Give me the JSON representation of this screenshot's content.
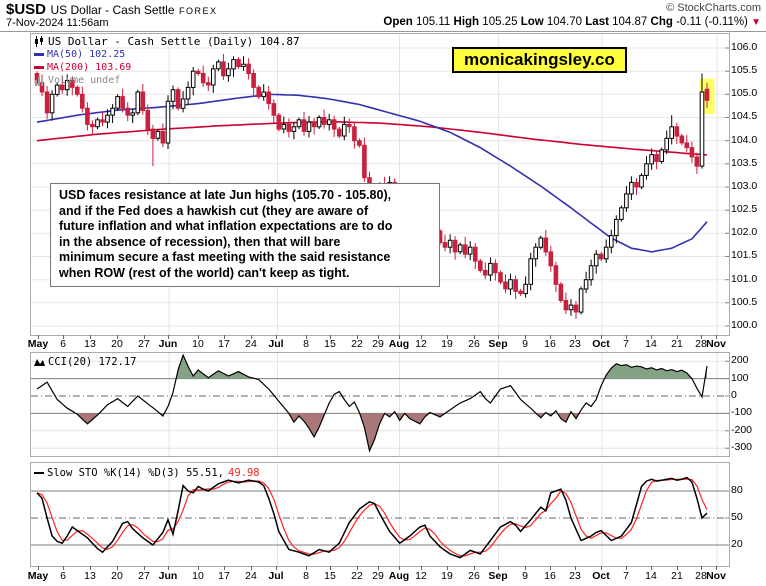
{
  "header": {
    "symbol": "$USD",
    "name": "US Dollar - Cash Settle",
    "exchange": "FOREX",
    "datetime": "7-Nov-2024 11:56am",
    "copyright": "© StockCharts.com",
    "quote": {
      "open_label": "Open",
      "open_value": "105.11",
      "high_label": "High",
      "high_value": "105.25",
      "low_label": "Low",
      "low_value": "104.70",
      "last_label": "Last",
      "last_value": "104.87",
      "chg_label": "Chg",
      "chg_value": "-0.11 (-0.11%)"
    }
  },
  "badge": {
    "text": "monicakingsley.co",
    "bg": "#ffff3d"
  },
  "legend": {
    "title": "US Dollar - Cash Settle (Daily) 104.87",
    "ma50": "MA(50) 102.25",
    "ma200": "MA(200) 103.69",
    "volume": "Volume undef",
    "ma50_color": "#3232b0",
    "ma200_color": "#cc0033"
  },
  "cci_legend": "CCI(20) 172.17",
  "sto_legend": {
    "black": "Slow STO %K(14) %D(3) 55.51,",
    "red": "49.98"
  },
  "annotation": {
    "lines": [
      "USD faces resistance at late Jun highs (105.70 - 105.80),",
      "and if the Fed does a hawkish cut (they are aware of",
      "future inflation and what inflation expectations are to do",
      "in the absence of recession), then that will bare",
      "minimum secure a fast meeting with the said resistance",
      "when ROW (rest of the world) can't keep as tight."
    ]
  },
  "chart_data": [
    {
      "type": "candlestick",
      "title": "US Dollar - Cash Settle (Daily)",
      "ylim": [
        100.0,
        106.0
      ],
      "yticks": [
        106.0,
        105.5,
        105.0,
        104.5,
        104.0,
        103.5,
        103.0,
        102.5,
        102.0,
        101.5,
        101.0,
        100.5,
        100.0
      ],
      "date_labels": [
        [
          "May",
          0.011,
          1
        ],
        [
          "6",
          0.047,
          0
        ],
        [
          "13",
          0.086,
          0
        ],
        [
          "20",
          0.125,
          0
        ],
        [
          "27",
          0.164,
          0
        ],
        [
          "Jun",
          0.198,
          1
        ],
        [
          "10",
          0.24,
          0
        ],
        [
          "17",
          0.278,
          0
        ],
        [
          "24",
          0.316,
          0
        ],
        [
          "Jul",
          0.353,
          1
        ],
        [
          "8",
          0.395,
          0
        ],
        [
          "15",
          0.43,
          0
        ],
        [
          "22",
          0.469,
          0
        ],
        [
          "29",
          0.499,
          0
        ],
        [
          "Aug",
          0.528,
          1
        ],
        [
          "12",
          0.56,
          0
        ],
        [
          "19",
          0.598,
          0
        ],
        [
          "26",
          0.636,
          0
        ],
        [
          "Sep",
          0.67,
          1
        ],
        [
          "9",
          0.709,
          0
        ],
        [
          "16",
          0.745,
          0
        ],
        [
          "23",
          0.781,
          0
        ],
        [
          "Oct",
          0.818,
          1
        ],
        [
          "7",
          0.854,
          0
        ],
        [
          "14",
          0.89,
          0
        ],
        [
          "21",
          0.927,
          0
        ],
        [
          "28",
          0.961,
          0
        ],
        [
          "Nov",
          0.983,
          1
        ]
      ],
      "closes": [
        105.25,
        105.05,
        104.6,
        105.0,
        105.2,
        105.1,
        105.3,
        105.15,
        105.0,
        104.7,
        104.35,
        104.3,
        104.45,
        104.4,
        104.55,
        104.7,
        104.95,
        104.7,
        104.55,
        104.6,
        105.05,
        104.65,
        104.25,
        104.05,
        104.2,
        103.95,
        104.85,
        105.1,
        104.7,
        104.9,
        105.15,
        105.5,
        105.45,
        105.25,
        105.2,
        105.55,
        105.7,
        105.4,
        105.55,
        105.75,
        105.6,
        105.65,
        105.45,
        105.15,
        104.95,
        105.05,
        104.8,
        104.55,
        104.25,
        104.35,
        104.2,
        104.3,
        104.45,
        104.2,
        104.4,
        104.3,
        104.5,
        104.35,
        104.45,
        104.25,
        104.1,
        104.35,
        104.3,
        104.0,
        103.9,
        103.2,
        103.0,
        102.85,
        103.05,
        102.9,
        103.1,
        102.95,
        102.8,
        102.7,
        102.85,
        102.6,
        102.35,
        102.1,
        101.95,
        102.05,
        101.8,
        101.7,
        101.85,
        101.6,
        101.75,
        101.55,
        101.7,
        101.4,
        101.2,
        101.1,
        101.35,
        101.15,
        100.95,
        100.8,
        101.0,
        100.75,
        100.7,
        100.9,
        101.45,
        101.7,
        101.9,
        101.6,
        101.3,
        100.9,
        100.55,
        100.35,
        100.45,
        100.3,
        100.8,
        101.0,
        101.3,
        101.55,
        101.45,
        101.7,
        101.95,
        102.3,
        102.55,
        102.85,
        103.1,
        103.0,
        103.25,
        103.5,
        103.7,
        103.55,
        103.8,
        104.05,
        104.3,
        104.1,
        103.95,
        103.85,
        103.65,
        103.45,
        105.05,
        104.87
      ],
      "overrides": {
        "23": {
          "l": 103.45
        },
        "39": {
          "h": 105.82
        },
        "66": {
          "l": 102.15
        },
        "107": {
          "l": 100.15
        },
        "126": {
          "h": 104.55
        },
        "132": {
          "o": 103.45,
          "h": 105.45,
          "l": 103.4
        },
        "133": {
          "o": 105.11,
          "h": 105.25,
          "l": 104.7
        }
      },
      "ma50": [
        [
          0,
          104.4
        ],
        [
          8,
          104.55
        ],
        [
          16,
          104.66
        ],
        [
          24,
          104.72
        ],
        [
          32,
          104.8
        ],
        [
          40,
          104.92
        ],
        [
          46,
          105.0
        ],
        [
          52,
          104.98
        ],
        [
          58,
          104.9
        ],
        [
          64,
          104.78
        ],
        [
          70,
          104.6
        ],
        [
          76,
          104.42
        ],
        [
          82,
          104.18
        ],
        [
          88,
          103.85
        ],
        [
          94,
          103.45
        ],
        [
          100,
          103.02
        ],
        [
          106,
          102.55
        ],
        [
          110,
          102.22
        ],
        [
          114,
          101.9
        ],
        [
          118,
          101.68
        ],
        [
          122,
          101.6
        ],
        [
          126,
          101.68
        ],
        [
          130,
          101.88
        ],
        [
          133,
          102.25
        ]
      ],
      "ma200": [
        [
          0,
          104.0
        ],
        [
          12,
          104.14
        ],
        [
          24,
          104.24
        ],
        [
          36,
          104.32
        ],
        [
          48,
          104.38
        ],
        [
          58,
          104.41
        ],
        [
          68,
          104.38
        ],
        [
          78,
          104.3
        ],
        [
          88,
          104.18
        ],
        [
          98,
          104.04
        ],
        [
          108,
          103.92
        ],
        [
          118,
          103.82
        ],
        [
          126,
          103.75
        ],
        [
          133,
          103.69
        ]
      ],
      "colors": {
        "up_fill": "#ffffff",
        "up_stroke": "#000000",
        "down": "#c9203e",
        "highlight": "#ffff66"
      }
    },
    {
      "type": "area-line",
      "name": "CCI(20)",
      "last": 172.17,
      "yticks": [
        200,
        100,
        0,
        -100,
        -200,
        -300
      ],
      "thresholds": {
        "upper": 100,
        "lower": -100,
        "mid": 0
      },
      "fill_above": "#84a384",
      "fill_below": "#aa7878",
      "points": [
        [
          0,
          40
        ],
        [
          2,
          80
        ],
        [
          4,
          -20
        ],
        [
          6,
          -70
        ],
        [
          8,
          -105
        ],
        [
          10,
          -160
        ],
        [
          12,
          -110
        ],
        [
          14,
          -50
        ],
        [
          16,
          -15
        ],
        [
          18,
          -60
        ],
        [
          20,
          0
        ],
        [
          22,
          -45
        ],
        [
          24,
          -90
        ],
        [
          25,
          -115
        ],
        [
          26,
          -60
        ],
        [
          27,
          20
        ],
        [
          28,
          150
        ],
        [
          29,
          235
        ],
        [
          30,
          170
        ],
        [
          31,
          115
        ],
        [
          32,
          150
        ],
        [
          34,
          105
        ],
        [
          36,
          145
        ],
        [
          38,
          115
        ],
        [
          40,
          140
        ],
        [
          42,
          110
        ],
        [
          44,
          95
        ],
        [
          46,
          40
        ],
        [
          48,
          -30
        ],
        [
          50,
          -100
        ],
        [
          51,
          -150
        ],
        [
          52,
          -115
        ],
        [
          53,
          -145
        ],
        [
          54,
          -185
        ],
        [
          55,
          -235
        ],
        [
          56,
          -180
        ],
        [
          57,
          -110
        ],
        [
          58,
          -40
        ],
        [
          59,
          10
        ],
        [
          60,
          25
        ],
        [
          61,
          -20
        ],
        [
          62,
          -60
        ],
        [
          63,
          -35
        ],
        [
          64,
          -95
        ],
        [
          65,
          -180
        ],
        [
          66,
          -315
        ],
        [
          67,
          -250
        ],
        [
          68,
          -160
        ],
        [
          69,
          -100
        ],
        [
          70,
          -120
        ],
        [
          71,
          -90
        ],
        [
          72,
          -140
        ],
        [
          73,
          -100
        ],
        [
          74,
          -130
        ],
        [
          76,
          -160
        ],
        [
          77,
          -120
        ],
        [
          78,
          -95
        ],
        [
          80,
          -120
        ],
        [
          82,
          -80
        ],
        [
          84,
          -40
        ],
        [
          86,
          -15
        ],
        [
          88,
          25
        ],
        [
          89,
          -15
        ],
        [
          90,
          -40
        ],
        [
          91,
          0
        ],
        [
          92,
          40
        ],
        [
          94,
          60
        ],
        [
          95,
          20
        ],
        [
          96,
          -20
        ],
        [
          98,
          -70
        ],
        [
          100,
          -125
        ],
        [
          101,
          -95
        ],
        [
          102,
          -115
        ],
        [
          103,
          -85
        ],
        [
          104,
          -130
        ],
        [
          105,
          -150
        ],
        [
          106,
          -90
        ],
        [
          107,
          -130
        ],
        [
          108,
          -80
        ],
        [
          109,
          -40
        ],
        [
          110,
          -60
        ],
        [
          111,
          -20
        ],
        [
          112,
          60
        ],
        [
          113,
          120
        ],
        [
          114,
          160
        ],
        [
          115,
          185
        ],
        [
          116,
          175
        ],
        [
          117,
          180
        ],
        [
          118,
          165
        ],
        [
          119,
          172
        ],
        [
          120,
          168
        ],
        [
          121,
          155
        ],
        [
          122,
          162
        ],
        [
          123,
          150
        ],
        [
          124,
          158
        ],
        [
          125,
          145
        ],
        [
          126,
          152
        ],
        [
          127,
          140
        ],
        [
          128,
          148
        ],
        [
          129,
          132
        ],
        [
          130,
          100
        ],
        [
          131,
          45
        ],
        [
          132,
          -5
        ],
        [
          133,
          172
        ]
      ]
    },
    {
      "type": "line",
      "name": "Slow STO %K(14) %D(3)",
      "k_last": 55.51,
      "d_last": 49.98,
      "yticks": [
        80,
        50,
        20
      ],
      "thresholds": {
        "upper": 80,
        "lower": 20,
        "mid": 50
      },
      "k_color": "#000000",
      "d_color": "#ff2222",
      "k_points": [
        [
          0,
          78
        ],
        [
          1,
          72
        ],
        [
          2,
          50
        ],
        [
          3,
          30
        ],
        [
          4,
          24
        ],
        [
          5,
          22
        ],
        [
          6,
          30
        ],
        [
          7,
          40
        ],
        [
          8,
          36
        ],
        [
          10,
          28
        ],
        [
          12,
          16
        ],
        [
          13,
          12
        ],
        [
          15,
          24
        ],
        [
          17,
          44
        ],
        [
          18,
          46
        ],
        [
          19,
          38
        ],
        [
          21,
          28
        ],
        [
          23,
          20
        ],
        [
          25,
          34
        ],
        [
          26,
          48
        ],
        [
          27,
          32
        ],
        [
          28,
          58
        ],
        [
          29,
          86
        ],
        [
          30,
          80
        ],
        [
          31,
          78
        ],
        [
          32,
          85
        ],
        [
          33,
          82
        ],
        [
          34,
          80
        ],
        [
          36,
          88
        ],
        [
          38,
          92
        ],
        [
          40,
          89
        ],
        [
          42,
          92
        ],
        [
          44,
          90
        ],
        [
          45,
          86
        ],
        [
          46,
          72
        ],
        [
          47,
          55
        ],
        [
          48,
          35
        ],
        [
          50,
          15
        ],
        [
          52,
          12
        ],
        [
          54,
          8
        ],
        [
          56,
          15
        ],
        [
          58,
          12
        ],
        [
          60,
          22
        ],
        [
          62,
          45
        ],
        [
          64,
          60
        ],
        [
          66,
          68
        ],
        [
          67,
          66
        ],
        [
          68,
          55
        ],
        [
          70,
          35
        ],
        [
          72,
          22
        ],
        [
          74,
          30
        ],
        [
          76,
          40
        ],
        [
          77,
          42
        ],
        [
          78,
          30
        ],
        [
          80,
          18
        ],
        [
          82,
          10
        ],
        [
          84,
          6
        ],
        [
          86,
          14
        ],
        [
          88,
          10
        ],
        [
          90,
          25
        ],
        [
          92,
          40
        ],
        [
          94,
          46
        ],
        [
          95,
          42
        ],
        [
          96,
          35
        ],
        [
          98,
          48
        ],
        [
          100,
          62
        ],
        [
          101,
          58
        ],
        [
          102,
          78
        ],
        [
          104,
          82
        ],
        [
          105,
          70
        ],
        [
          106,
          50
        ],
        [
          108,
          25
        ],
        [
          110,
          30
        ],
        [
          111,
          34
        ],
        [
          112,
          36
        ],
        [
          114,
          25
        ],
        [
          116,
          30
        ],
        [
          118,
          45
        ],
        [
          119,
          65
        ],
        [
          120,
          85
        ],
        [
          121,
          91
        ],
        [
          122,
          93
        ],
        [
          123,
          91
        ],
        [
          124,
          92
        ],
        [
          126,
          94
        ],
        [
          127,
          92
        ],
        [
          128,
          93
        ],
        [
          129,
          95
        ],
        [
          130,
          90
        ],
        [
          131,
          72
        ],
        [
          132,
          50
        ],
        [
          133,
          55.5
        ]
      ]
    }
  ]
}
